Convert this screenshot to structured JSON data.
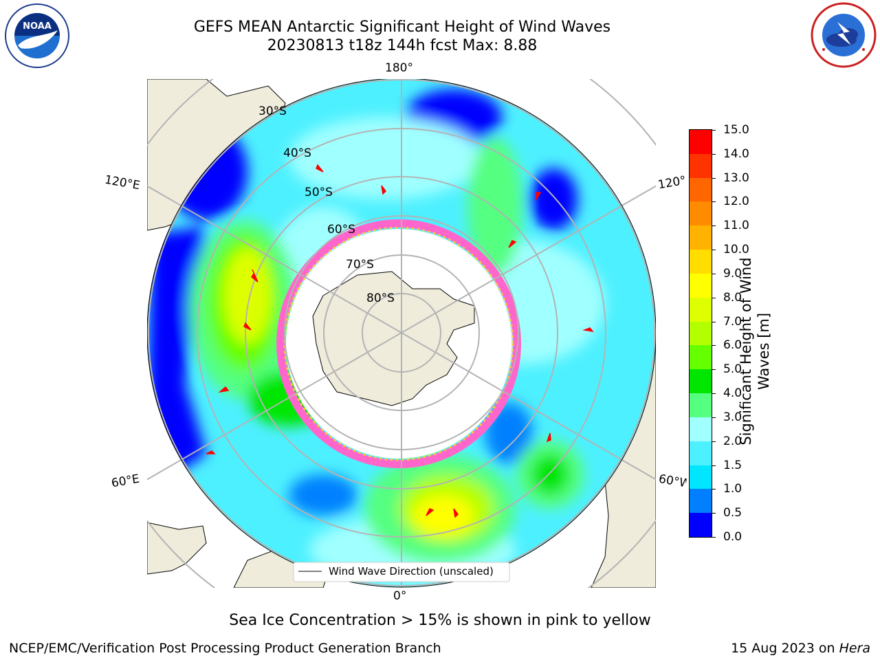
{
  "title": {
    "line1": "GEFS MEAN Antarctic Significant Height of Wind Waves",
    "line2": "20230813 t18z 144h fcst   Max: 8.88"
  },
  "logos": {
    "left": {
      "text": "NOAA",
      "ring_text": "NATIONAL OCEANIC AND ATMOSPHERIC ADMINISTRATION · U.S. DEPARTMENT OF COMMERCE"
    },
    "right": {
      "ring_text": "NATIONAL WEATHER SERVICE"
    }
  },
  "map": {
    "longitude_labels": {
      "top": "180°",
      "bottom": "0°",
      "upper_left": "120°E",
      "upper_right": "120°",
      "lower_left": "60°E",
      "lower_right": "60°W"
    },
    "latitude_labels": [
      "30°S",
      "40°S",
      "50°S",
      "60°S",
      "70°S",
      "80°S"
    ],
    "legend": "Wind Wave Direction (unscaled)",
    "colors": {
      "land": "#efecdc",
      "ice": "#ff66cc",
      "arrow": "#ff0000",
      "grid": "#b3b3b3"
    }
  },
  "colorbar": {
    "label_line1": "Significant Height of Wind",
    "label_line2": "Waves [m]",
    "ticks": [
      "0.0",
      "0.5",
      "1.0",
      "1.5",
      "2.0",
      "3.0",
      "4.0",
      "5.0",
      "6.0",
      "7.0",
      "8.0",
      "9.0",
      "10.0",
      "11.0",
      "12.0",
      "13.0",
      "14.0",
      "15.0"
    ],
    "colors": [
      "#0000ff",
      "#0080ff",
      "#00e6ff",
      "#4df0ff",
      "#a0ffff",
      "#55ff80",
      "#00e600",
      "#66ff00",
      "#b3ff00",
      "#ddff00",
      "#ffff00",
      "#ffdd00",
      "#ffb300",
      "#ff8c00",
      "#ff6600",
      "#ff3300",
      "#ff0000"
    ]
  },
  "note": "Sea Ice Concentration > 15% is shown in pink to yellow",
  "footer": {
    "left": "NCEP/EMC/Verification Post Processing Product Generation Branch",
    "right_date": "15 Aug 2023 on ",
    "right_host": "Hera"
  }
}
